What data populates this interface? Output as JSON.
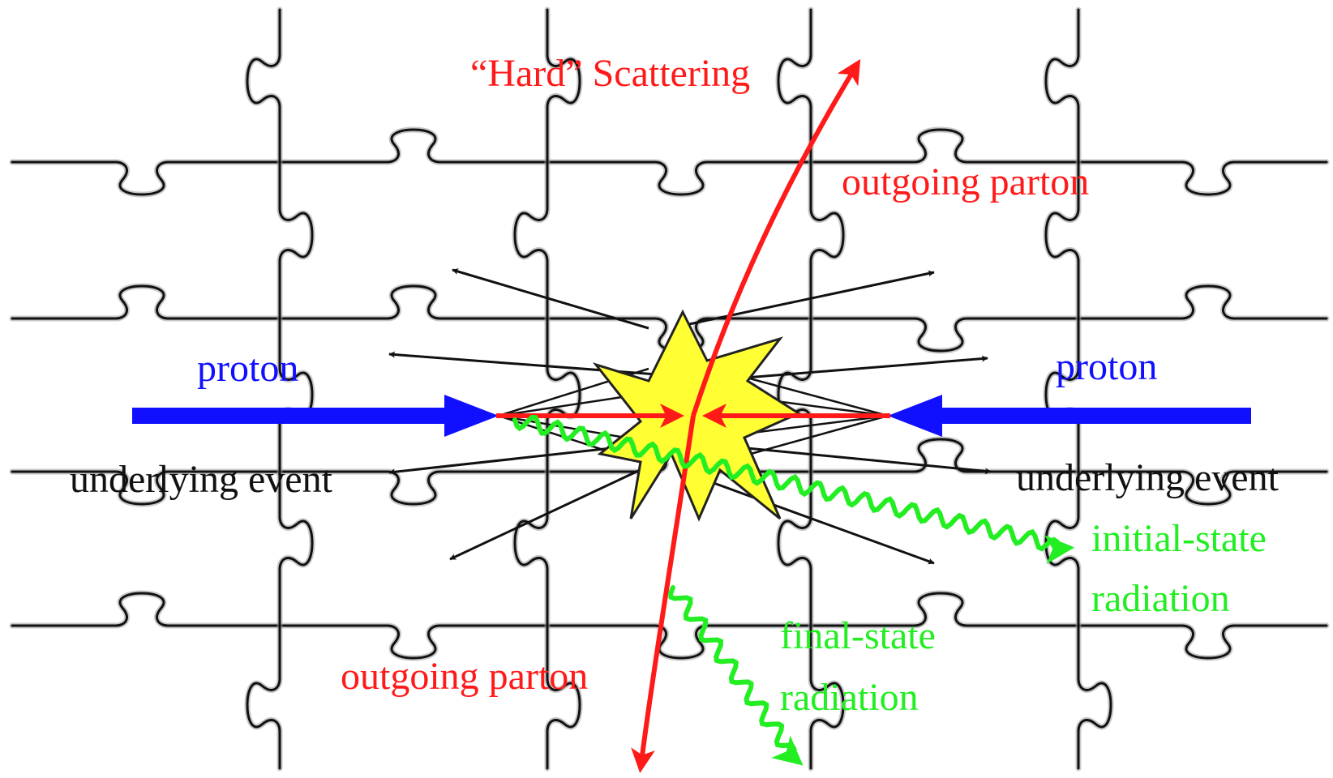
{
  "labels": {
    "hard_scattering": "“Hard” Scattering",
    "outgoing_parton_top": "outgoing parton",
    "outgoing_parton_bottom": "outgoing parton",
    "proton_left": "proton",
    "proton_right": "proton",
    "underlying_event_left": "underlying event",
    "underlying_event_right": "underlying event",
    "initial_state_1": "initial-state",
    "initial_state_2": "radiation",
    "final_state_1": "final-state",
    "final_state_2": "radiation"
  },
  "colors": {
    "proton": "#1010ff",
    "parton": "#ff1a1a",
    "radiation": "#22ee22",
    "underlying": "#111111",
    "burst_fill": "#ffff33",
    "burst_stroke": "#222222",
    "puzzle_line": "#111111"
  },
  "icons": {
    "background": "jigsaw-puzzle-pattern",
    "collision": "starburst-icon"
  }
}
